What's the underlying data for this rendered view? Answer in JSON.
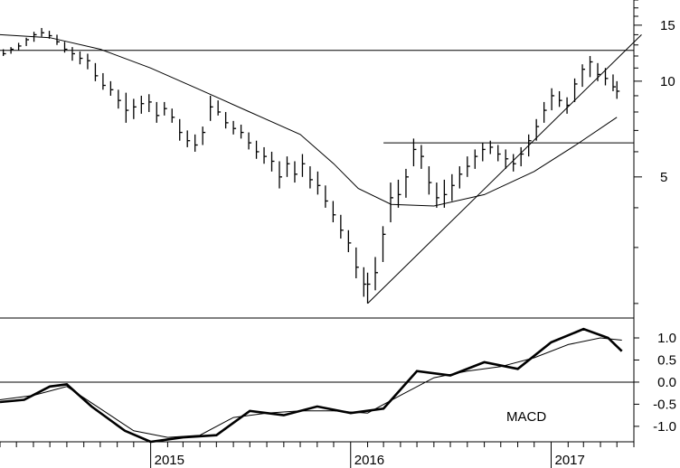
{
  "chart_data": [
    {
      "type": "line",
      "subtype": "weekly-ohlc-bars",
      "title": "",
      "xlabel": "",
      "ylabel": "",
      "yscale": "log",
      "ylim": [
        1.8,
        18
      ],
      "y_ticks": [
        15,
        10,
        5
      ],
      "y_tick_labels": [
        "15",
        "10",
        "5"
      ],
      "x_ticks": [
        "2015",
        "2016",
        "2017"
      ],
      "x_range": [
        "2014-04",
        "2017-06"
      ],
      "price_bars": [
        [
          "2014-04-07",
          12.0,
          12.6,
          12.2
        ],
        [
          "2014-04-21",
          12.2,
          12.8,
          12.6
        ],
        [
          "2014-05-05",
          12.5,
          13.2,
          12.9
        ],
        [
          "2014-05-19",
          12.9,
          13.7,
          13.5
        ],
        [
          "2014-06-02",
          13.3,
          14.3,
          14.0
        ],
        [
          "2014-06-16",
          13.8,
          14.7,
          14.2
        ],
        [
          "2014-06-30",
          13.6,
          14.4,
          13.9
        ],
        [
          "2014-07-14",
          13.0,
          14.0,
          13.3
        ],
        [
          "2014-07-28",
          12.3,
          13.3,
          12.6
        ],
        [
          "2014-08-11",
          11.6,
          12.8,
          12.2
        ],
        [
          "2014-08-25",
          11.3,
          12.4,
          11.8
        ],
        [
          "2014-09-08",
          10.9,
          12.2,
          11.6
        ],
        [
          "2014-09-22",
          10.0,
          11.4,
          10.4
        ],
        [
          "2014-10-06",
          9.4,
          10.6,
          9.7
        ],
        [
          "2014-10-20",
          9.0,
          10.0,
          9.4
        ],
        [
          "2014-11-03",
          8.2,
          9.4,
          8.7
        ],
        [
          "2014-11-17",
          7.4,
          9.2,
          8.1
        ],
        [
          "2014-12-01",
          7.6,
          8.8,
          8.3
        ],
        [
          "2014-12-15",
          7.9,
          9.0,
          8.5
        ],
        [
          "2014-12-29",
          8.0,
          9.1,
          8.6
        ],
        [
          "2015-01-12",
          7.4,
          8.6,
          7.8
        ],
        [
          "2015-01-26",
          7.8,
          8.6,
          8.2
        ],
        [
          "2015-02-09",
          7.4,
          8.2,
          7.7
        ],
        [
          "2015-02-23",
          6.5,
          7.6,
          6.9
        ],
        [
          "2015-03-09",
          6.2,
          7.0,
          6.5
        ],
        [
          "2015-03-23",
          6.0,
          6.8,
          6.3
        ],
        [
          "2015-04-06",
          6.3,
          7.2,
          6.9
        ],
        [
          "2015-04-20",
          7.5,
          9.0,
          8.3
        ],
        [
          "2015-05-04",
          7.8,
          8.7,
          8.0
        ],
        [
          "2015-05-18",
          7.1,
          8.0,
          7.4
        ],
        [
          "2015-06-01",
          6.8,
          7.5,
          7.1
        ],
        [
          "2015-06-15",
          6.6,
          7.3,
          6.9
        ],
        [
          "2015-06-29",
          6.1,
          6.9,
          6.4
        ],
        [
          "2015-07-13",
          5.7,
          6.5,
          6.0
        ],
        [
          "2015-07-27",
          5.5,
          6.2,
          5.8
        ],
        [
          "2015-08-10",
          5.2,
          6.0,
          5.6
        ],
        [
          "2015-08-24",
          4.6,
          5.6,
          5.0
        ],
        [
          "2015-09-07",
          5.0,
          5.8,
          5.5
        ],
        [
          "2015-09-21",
          4.8,
          5.6,
          5.1
        ],
        [
          "2015-10-05",
          5.0,
          5.9,
          5.5
        ],
        [
          "2015-10-19",
          4.6,
          5.4,
          4.9
        ],
        [
          "2015-11-02",
          4.4,
          5.2,
          4.7
        ],
        [
          "2015-11-16",
          4.0,
          4.7,
          4.2
        ],
        [
          "2015-11-30",
          3.6,
          4.2,
          3.8
        ],
        [
          "2015-12-14",
          3.2,
          3.8,
          3.4
        ],
        [
          "2015-12-28",
          2.9,
          3.4,
          3.1
        ],
        [
          "2016-01-11",
          2.4,
          3.0,
          2.6
        ],
        [
          "2016-01-25",
          2.1,
          2.6,
          2.3
        ],
        [
          "2016-02-01",
          2.0,
          2.5,
          2.3
        ],
        [
          "2016-02-15",
          2.2,
          2.8,
          2.5
        ],
        [
          "2016-02-29",
          2.7,
          3.5,
          3.3
        ],
        [
          "2016-03-14",
          3.6,
          4.8,
          4.3
        ],
        [
          "2016-03-28",
          4.0,
          4.9,
          4.4
        ],
        [
          "2016-04-11",
          4.3,
          5.3,
          5.0
        ],
        [
          "2016-04-25",
          5.4,
          6.6,
          6.1
        ],
        [
          "2016-05-09",
          5.3,
          6.3,
          5.8
        ],
        [
          "2016-05-23",
          4.4,
          5.4,
          4.8
        ],
        [
          "2016-06-06",
          4.0,
          4.8,
          4.3
        ],
        [
          "2016-06-20",
          4.0,
          4.9,
          4.4
        ],
        [
          "2016-07-04",
          4.2,
          5.1,
          4.7
        ],
        [
          "2016-07-18",
          4.6,
          5.4,
          5.1
        ],
        [
          "2016-08-01",
          5.0,
          5.8,
          5.4
        ],
        [
          "2016-08-15",
          5.3,
          6.1,
          5.8
        ],
        [
          "2016-08-29",
          5.6,
          6.4,
          6.1
        ],
        [
          "2016-09-12",
          5.9,
          6.5,
          6.2
        ],
        [
          "2016-09-26",
          5.6,
          6.3,
          5.9
        ],
        [
          "2016-10-10",
          5.3,
          6.1,
          5.7
        ],
        [
          "2016-10-24",
          5.2,
          5.9,
          5.5
        ],
        [
          "2016-11-07",
          5.4,
          6.2,
          5.9
        ],
        [
          "2016-11-21",
          5.8,
          6.8,
          6.5
        ],
        [
          "2016-12-05",
          6.5,
          7.6,
          7.2
        ],
        [
          "2016-12-19",
          7.4,
          8.6,
          8.1
        ],
        [
          "2017-01-02",
          8.1,
          9.5,
          9.0
        ],
        [
          "2017-01-16",
          8.3,
          9.3,
          8.7
        ],
        [
          "2017-01-30",
          7.9,
          8.9,
          8.4
        ],
        [
          "2017-02-13",
          8.6,
          10.2,
          9.8
        ],
        [
          "2017-02-27",
          9.6,
          11.3,
          10.9
        ],
        [
          "2017-03-13",
          10.3,
          12.0,
          11.5
        ],
        [
          "2017-03-27",
          10.0,
          11.4,
          10.5
        ],
        [
          "2017-04-10",
          9.7,
          11.0,
          10.2
        ],
        [
          "2017-04-24",
          9.3,
          10.5,
          9.6
        ],
        [
          "2017-05-01",
          8.8,
          10.0,
          9.3
        ]
      ],
      "moving_average": [
        [
          "2014-04-01",
          14.0
        ],
        [
          "2014-07-01",
          13.7
        ],
        [
          "2014-10-01",
          12.6
        ],
        [
          "2015-01-01",
          11.0
        ],
        [
          "2015-04-01",
          9.4
        ],
        [
          "2015-07-01",
          8.0
        ],
        [
          "2015-10-01",
          6.8
        ],
        [
          "2015-12-01",
          5.5
        ],
        [
          "2016-01-15",
          4.6
        ],
        [
          "2016-03-15",
          4.1
        ],
        [
          "2016-06-01",
          4.05
        ],
        [
          "2016-09-01",
          4.4
        ],
        [
          "2016-12-01",
          5.2
        ],
        [
          "2017-02-15",
          6.3
        ],
        [
          "2017-05-01",
          7.7
        ]
      ],
      "horizontal_lines": [
        12.5,
        6.4
      ],
      "resistance_line_start": "2016-03-01",
      "trend_line": [
        [
          "2016-02-01",
          2.0
        ],
        [
          "2017-06-15",
          14.0
        ]
      ]
    },
    {
      "type": "line",
      "title": "",
      "label": "MACD",
      "ylim": [
        -1.35,
        1.45
      ],
      "y_ticks": [
        1.0,
        0.5,
        0.0,
        -0.5,
        -1.0
      ],
      "y_tick_labels": [
        "1.0",
        "0.5",
        "0.0",
        "-0.5",
        "-1.0"
      ],
      "zero_line": 0.0,
      "series": [
        {
          "values": [
            [
              "2014-04-01",
              -0.45
            ],
            [
              "2014-05-15",
              -0.4
            ],
            [
              "2014-07-01",
              -0.1
            ],
            [
              "2014-08-01",
              -0.05
            ],
            [
              "2014-09-15",
              -0.55
            ],
            [
              "2014-11-15",
              -1.1
            ],
            [
              "2015-01-01",
              -1.35
            ],
            [
              "2015-03-01",
              -1.25
            ],
            [
              "2015-05-01",
              -1.2
            ],
            [
              "2015-07-01",
              -0.65
            ],
            [
              "2015-09-01",
              -0.75
            ],
            [
              "2015-11-01",
              -0.55
            ],
            [
              "2016-01-01",
              -0.7
            ],
            [
              "2016-03-01",
              -0.6
            ],
            [
              "2016-05-01",
              0.25
            ],
            [
              "2016-07-01",
              0.15
            ],
            [
              "2016-09-01",
              0.45
            ],
            [
              "2016-11-01",
              0.3
            ],
            [
              "2017-01-01",
              0.9
            ],
            [
              "2017-03-01",
              1.2
            ],
            [
              "2017-04-15",
              1.0
            ],
            [
              "2017-05-10",
              0.7
            ]
          ]
        },
        {
          "values": [
            [
              "2014-04-01",
              -0.4
            ],
            [
              "2014-06-01",
              -0.3
            ],
            [
              "2014-08-01",
              -0.1
            ],
            [
              "2014-10-01",
              -0.6
            ],
            [
              "2014-12-01",
              -1.1
            ],
            [
              "2015-02-01",
              -1.25
            ],
            [
              "2015-04-01",
              -1.2
            ],
            [
              "2015-06-01",
              -0.8
            ],
            [
              "2015-08-01",
              -0.7
            ],
            [
              "2015-10-01",
              -0.65
            ],
            [
              "2015-12-01",
              -0.65
            ],
            [
              "2016-02-01",
              -0.7
            ],
            [
              "2016-04-01",
              -0.3
            ],
            [
              "2016-06-01",
              0.1
            ],
            [
              "2016-08-01",
              0.25
            ],
            [
              "2016-10-01",
              0.35
            ],
            [
              "2016-12-01",
              0.55
            ],
            [
              "2017-02-01",
              0.85
            ],
            [
              "2017-04-01",
              1.0
            ],
            [
              "2017-05-10",
              0.95
            ]
          ]
        }
      ]
    }
  ]
}
